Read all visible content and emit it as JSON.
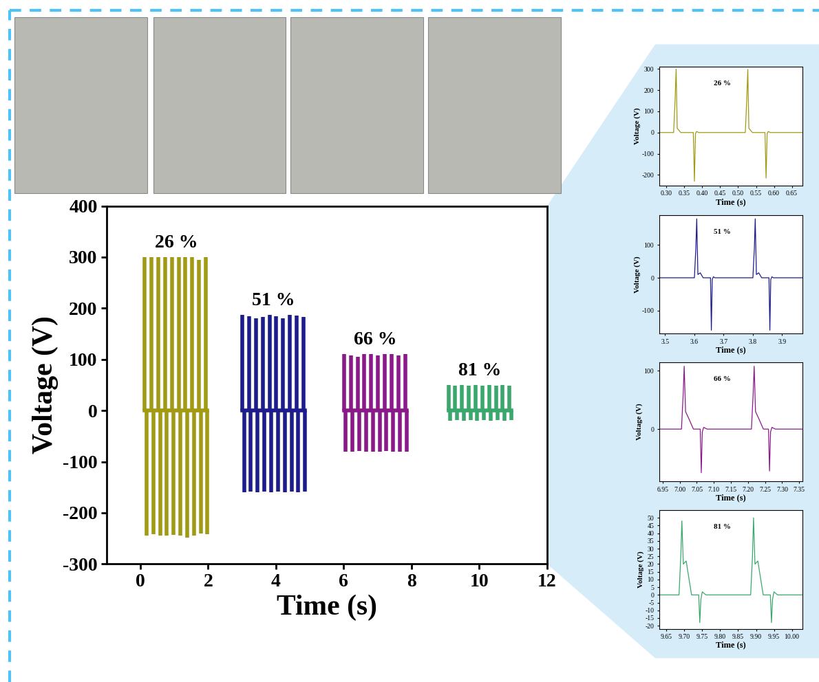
{
  "chart_data": [
    {
      "type": "line",
      "xlabel": "Time (s)",
      "ylabel": "Voltage (V)",
      "xlim": [
        -1,
        12
      ],
      "xticks": [
        0,
        2,
        4,
        6,
        8,
        10,
        12
      ],
      "ylim": [
        -300,
        400
      ],
      "yticks": [
        -300,
        -200,
        -100,
        0,
        100,
        200,
        300,
        400
      ],
      "grid": false,
      "series": [
        {
          "name": "26 %",
          "color": "#a09a14",
          "x": [
            0.13,
            0.33,
            0.53,
            0.73,
            0.93,
            1.13,
            1.33,
            1.53,
            1.73,
            1.93
          ],
          "values": [
            300,
            300,
            300,
            300,
            300,
            300,
            300,
            300,
            295,
            300
          ],
          "trough_x": [
            0.18,
            0.38,
            0.58,
            0.78,
            0.98,
            1.18,
            1.38,
            1.58,
            1.78,
            1.98
          ],
          "trough_values": [
            -245,
            -242,
            -245,
            -245,
            -243,
            -245,
            -248,
            -245,
            -240,
            -242
          ]
        },
        {
          "name": "51 %",
          "color": "#1c1c8c",
          "x": [
            3.01,
            3.21,
            3.41,
            3.61,
            3.81,
            4.01,
            4.21,
            4.41,
            4.61,
            4.81
          ],
          "values": [
            187,
            185,
            180,
            183,
            187,
            185,
            180,
            187,
            186,
            183
          ],
          "trough_x": [
            3.06,
            3.26,
            3.46,
            3.66,
            3.86,
            4.06,
            4.26,
            4.46,
            4.66,
            4.86
          ],
          "trough_values": [
            -160,
            -158,
            -160,
            -159,
            -160,
            -158,
            -160,
            -159,
            -160,
            -158
          ]
        },
        {
          "name": "66 %",
          "color": "#8a1a8a",
          "x": [
            6.01,
            6.21,
            6.41,
            6.61,
            6.81,
            7.01,
            7.21,
            7.41,
            7.61,
            7.81
          ],
          "values": [
            110,
            108,
            105,
            110,
            110,
            108,
            110,
            110,
            108,
            110
          ],
          "trough_x": [
            6.06,
            6.26,
            6.46,
            6.66,
            6.86,
            7.06,
            7.26,
            7.46,
            7.66,
            7.86
          ],
          "trough_values": [
            -80,
            -80,
            -79,
            -80,
            -80,
            -80,
            -79,
            -80,
            -80,
            -80
          ]
        },
        {
          "name": "81 %",
          "color": "#3aa86c",
          "x": [
            9.09,
            9.29,
            9.49,
            9.69,
            9.89,
            10.09,
            10.29,
            10.49,
            10.69,
            10.89
          ],
          "values": [
            50,
            48,
            50,
            48,
            50,
            48,
            50,
            48,
            50,
            48
          ],
          "trough_x": [
            9.14,
            9.34,
            9.54,
            9.74,
            9.94,
            10.14,
            10.34,
            10.54,
            10.74,
            10.94
          ],
          "trough_values": [
            -20,
            -18,
            -20,
            -18,
            -20,
            -18,
            -20,
            -18,
            -20,
            -18
          ]
        }
      ]
    },
    {
      "type": "line",
      "annotation": "26 %",
      "xlabel": "Time (s)",
      "ylabel": "Voltage (V)",
      "color": "#a09a14",
      "xlim": [
        0.28,
        0.68
      ],
      "xticks": [
        {
          "value": 0.3,
          "label": "0.30"
        },
        0.35,
        {
          "value": 0.4,
          "label": "0.40"
        },
        0.45,
        {
          "value": 0.5,
          "label": "0.50"
        },
        0.55,
        {
          "value": 0.6,
          "label": "0.60"
        },
        0.65
      ],
      "ylim": [
        -250,
        310
      ],
      "yticks": [
        -200,
        -100,
        0,
        100,
        200,
        300
      ],
      "x": [
        0.28,
        0.32,
        0.324,
        0.327,
        0.33,
        0.335,
        0.34,
        0.375,
        0.378,
        0.381,
        0.384,
        0.39,
        0.52,
        0.524,
        0.527,
        0.53,
        0.535,
        0.54,
        0.575,
        0.578,
        0.581,
        0.584,
        0.59,
        0.68
      ],
      "values": [
        0,
        0,
        150,
        300,
        20,
        10,
        0,
        0,
        -230,
        -5,
        5,
        0,
        0,
        150,
        298,
        20,
        10,
        0,
        0,
        -215,
        -5,
        5,
        0,
        0
      ]
    },
    {
      "type": "line",
      "annotation": "51 %",
      "xlabel": "Time (s)",
      "ylabel": "Voltage (V)",
      "color": "#1c1c8c",
      "xlim": [
        3.48,
        3.97
      ],
      "xticks": [
        3.5,
        3.6,
        3.7,
        3.8,
        3.9
      ],
      "ylim": [
        -170,
        190
      ],
      "yticks": [
        -100,
        0,
        100
      ],
      "x": [
        3.48,
        3.6,
        3.605,
        3.608,
        3.612,
        3.62,
        3.63,
        3.655,
        3.658,
        3.661,
        3.665,
        3.67,
        3.8,
        3.805,
        3.808,
        3.812,
        3.82,
        3.83,
        3.855,
        3.858,
        3.861,
        3.865,
        3.87,
        3.97
      ],
      "values": [
        0,
        0,
        90,
        180,
        10,
        15,
        0,
        0,
        -160,
        -5,
        3,
        0,
        0,
        90,
        180,
        10,
        15,
        0,
        0,
        -160,
        -5,
        3,
        0,
        0
      ]
    },
    {
      "type": "line",
      "annotation": "66 %",
      "xlabel": "Time (s)",
      "ylabel": "Voltage (V)",
      "color": "#8a1a8a",
      "xlim": [
        6.94,
        7.36
      ],
      "xticks": [
        6.95,
        {
          "value": 7.0,
          "label": "7.00"
        },
        7.05,
        {
          "value": 7.1,
          "label": "7.10"
        },
        7.15,
        {
          "value": 7.2,
          "label": "7.20"
        },
        7.25,
        {
          "value": 7.3,
          "label": "7.30"
        },
        7.35
      ],
      "ylim": [
        -90,
        115
      ],
      "yticks": [
        0,
        100
      ],
      "x": [
        6.94,
        7.005,
        7.01,
        7.013,
        7.017,
        7.025,
        7.04,
        7.06,
        7.063,
        7.066,
        7.07,
        7.08,
        7.21,
        7.215,
        7.218,
        7.222,
        7.23,
        7.245,
        7.26,
        7.263,
        7.266,
        7.27,
        7.28,
        7.36
      ],
      "values": [
        0,
        0,
        60,
        108,
        30,
        20,
        0,
        0,
        -75,
        -5,
        3,
        0,
        0,
        60,
        108,
        30,
        20,
        0,
        0,
        -72,
        -5,
        3,
        0,
        0
      ]
    },
    {
      "type": "line",
      "annotation": "81 %",
      "xlabel": "Time (s)",
      "ylabel": "Voltage (V)",
      "color": "#3aa86c",
      "xlim": [
        9.63,
        10.03
      ],
      "xticks": [
        9.65,
        {
          "value": 9.7,
          "label": "9.70"
        },
        9.75,
        {
          "value": 9.8,
          "label": "9.80"
        },
        9.85,
        {
          "value": 9.9,
          "label": "9.90"
        },
        9.95,
        {
          "value": 10.0,
          "label": "10.00"
        }
      ],
      "ylim": [
        -22,
        55
      ],
      "yticks": [
        -20,
        -15,
        -10,
        -5,
        0,
        5,
        10,
        15,
        20,
        25,
        30,
        35,
        40,
        45,
        50
      ],
      "x": [
        9.63,
        9.685,
        9.69,
        9.693,
        9.697,
        9.705,
        9.72,
        9.74,
        9.743,
        9.746,
        9.75,
        9.76,
        9.885,
        9.89,
        9.893,
        9.897,
        9.905,
        9.92,
        9.94,
        9.943,
        9.946,
        9.95,
        9.96,
        10.03
      ],
      "values": [
        0,
        0,
        25,
        48,
        20,
        22,
        0,
        0,
        -18,
        -3,
        2,
        0,
        0,
        25,
        50,
        20,
        22,
        0,
        0,
        -18,
        -3,
        2,
        0,
        0
      ]
    }
  ]
}
